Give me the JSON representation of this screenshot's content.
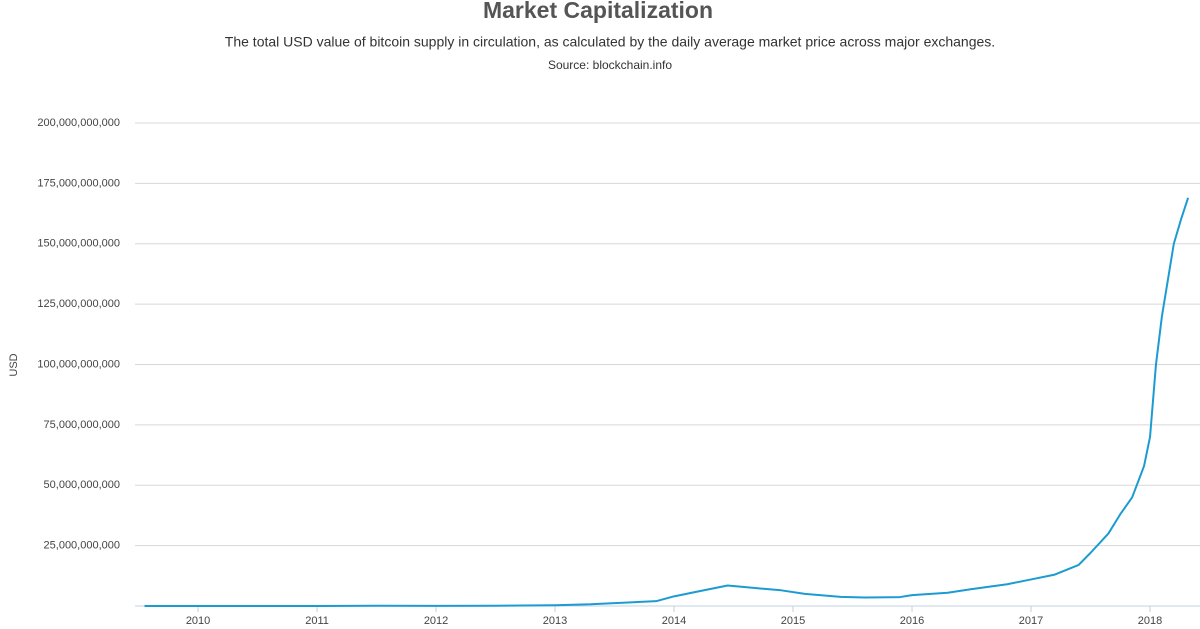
{
  "chart_data": {
    "type": "line",
    "title": "Market Capitalization",
    "subtitle": "The total USD value of bitcoin supply in circulation, as calculated by the daily average market price across major exchanges.",
    "source": "Source: blockchain.info",
    "y_label": "USD",
    "x": [
      2009.55,
      2010.0,
      2010.5,
      2011.0,
      2011.5,
      2012.0,
      2012.5,
      2013.0,
      2013.3,
      2013.5,
      2013.85,
      2014.0,
      2014.2,
      2014.45,
      2014.6,
      2014.9,
      2015.1,
      2015.4,
      2015.6,
      2015.9,
      2016.0,
      2016.3,
      2016.5,
      2016.8,
      2017.0,
      2017.2,
      2017.4,
      2017.5,
      2017.65,
      2017.75,
      2017.85,
      2017.95,
      2018.0,
      2018.05,
      2018.1,
      2018.15,
      2018.2,
      2018.26,
      2018.32
    ],
    "series": [
      {
        "name": "Market Capitalization",
        "color": "#1c9bd1",
        "values": [
          0,
          0,
          0,
          0,
          100000000,
          50000000,
          100000000,
          300000000,
          700000000,
          1200000000,
          2000000000,
          4000000000,
          6000000000,
          8500000000,
          7800000000,
          6500000000,
          5000000000,
          3800000000,
          3500000000,
          3700000000,
          4500000000,
          5500000000,
          7000000000,
          9000000000,
          11000000000,
          13000000000,
          17000000000,
          22000000000,
          30000000000,
          38000000000,
          45000000000,
          58000000000,
          70000000000,
          100000000000,
          120000000000,
          135000000000,
          150000000000,
          160000000000,
          169000000000
        ]
      }
    ],
    "xlim": [
      2009.47,
      2018.42
    ],
    "xticks": [
      2010,
      2011,
      2012,
      2013,
      2014,
      2015,
      2016,
      2017,
      2018
    ],
    "ylim": [
      0,
      200000000000
    ],
    "yticks": [
      {
        "value": 25000000000,
        "label": "25,000,000,000"
      },
      {
        "value": 50000000000,
        "label": "50,000,000,000"
      },
      {
        "value": 75000000000,
        "label": "75,000,000,000"
      },
      {
        "value": 100000000000,
        "label": "100,000,000,000"
      },
      {
        "value": 125000000000,
        "label": "125,000,000,000"
      },
      {
        "value": 150000000000,
        "label": "150,000,000,000"
      },
      {
        "value": 175000000000,
        "label": "175,000,000,000"
      },
      {
        "value": 200000000000,
        "label": "200,000,000,000"
      }
    ],
    "grid": true
  }
}
